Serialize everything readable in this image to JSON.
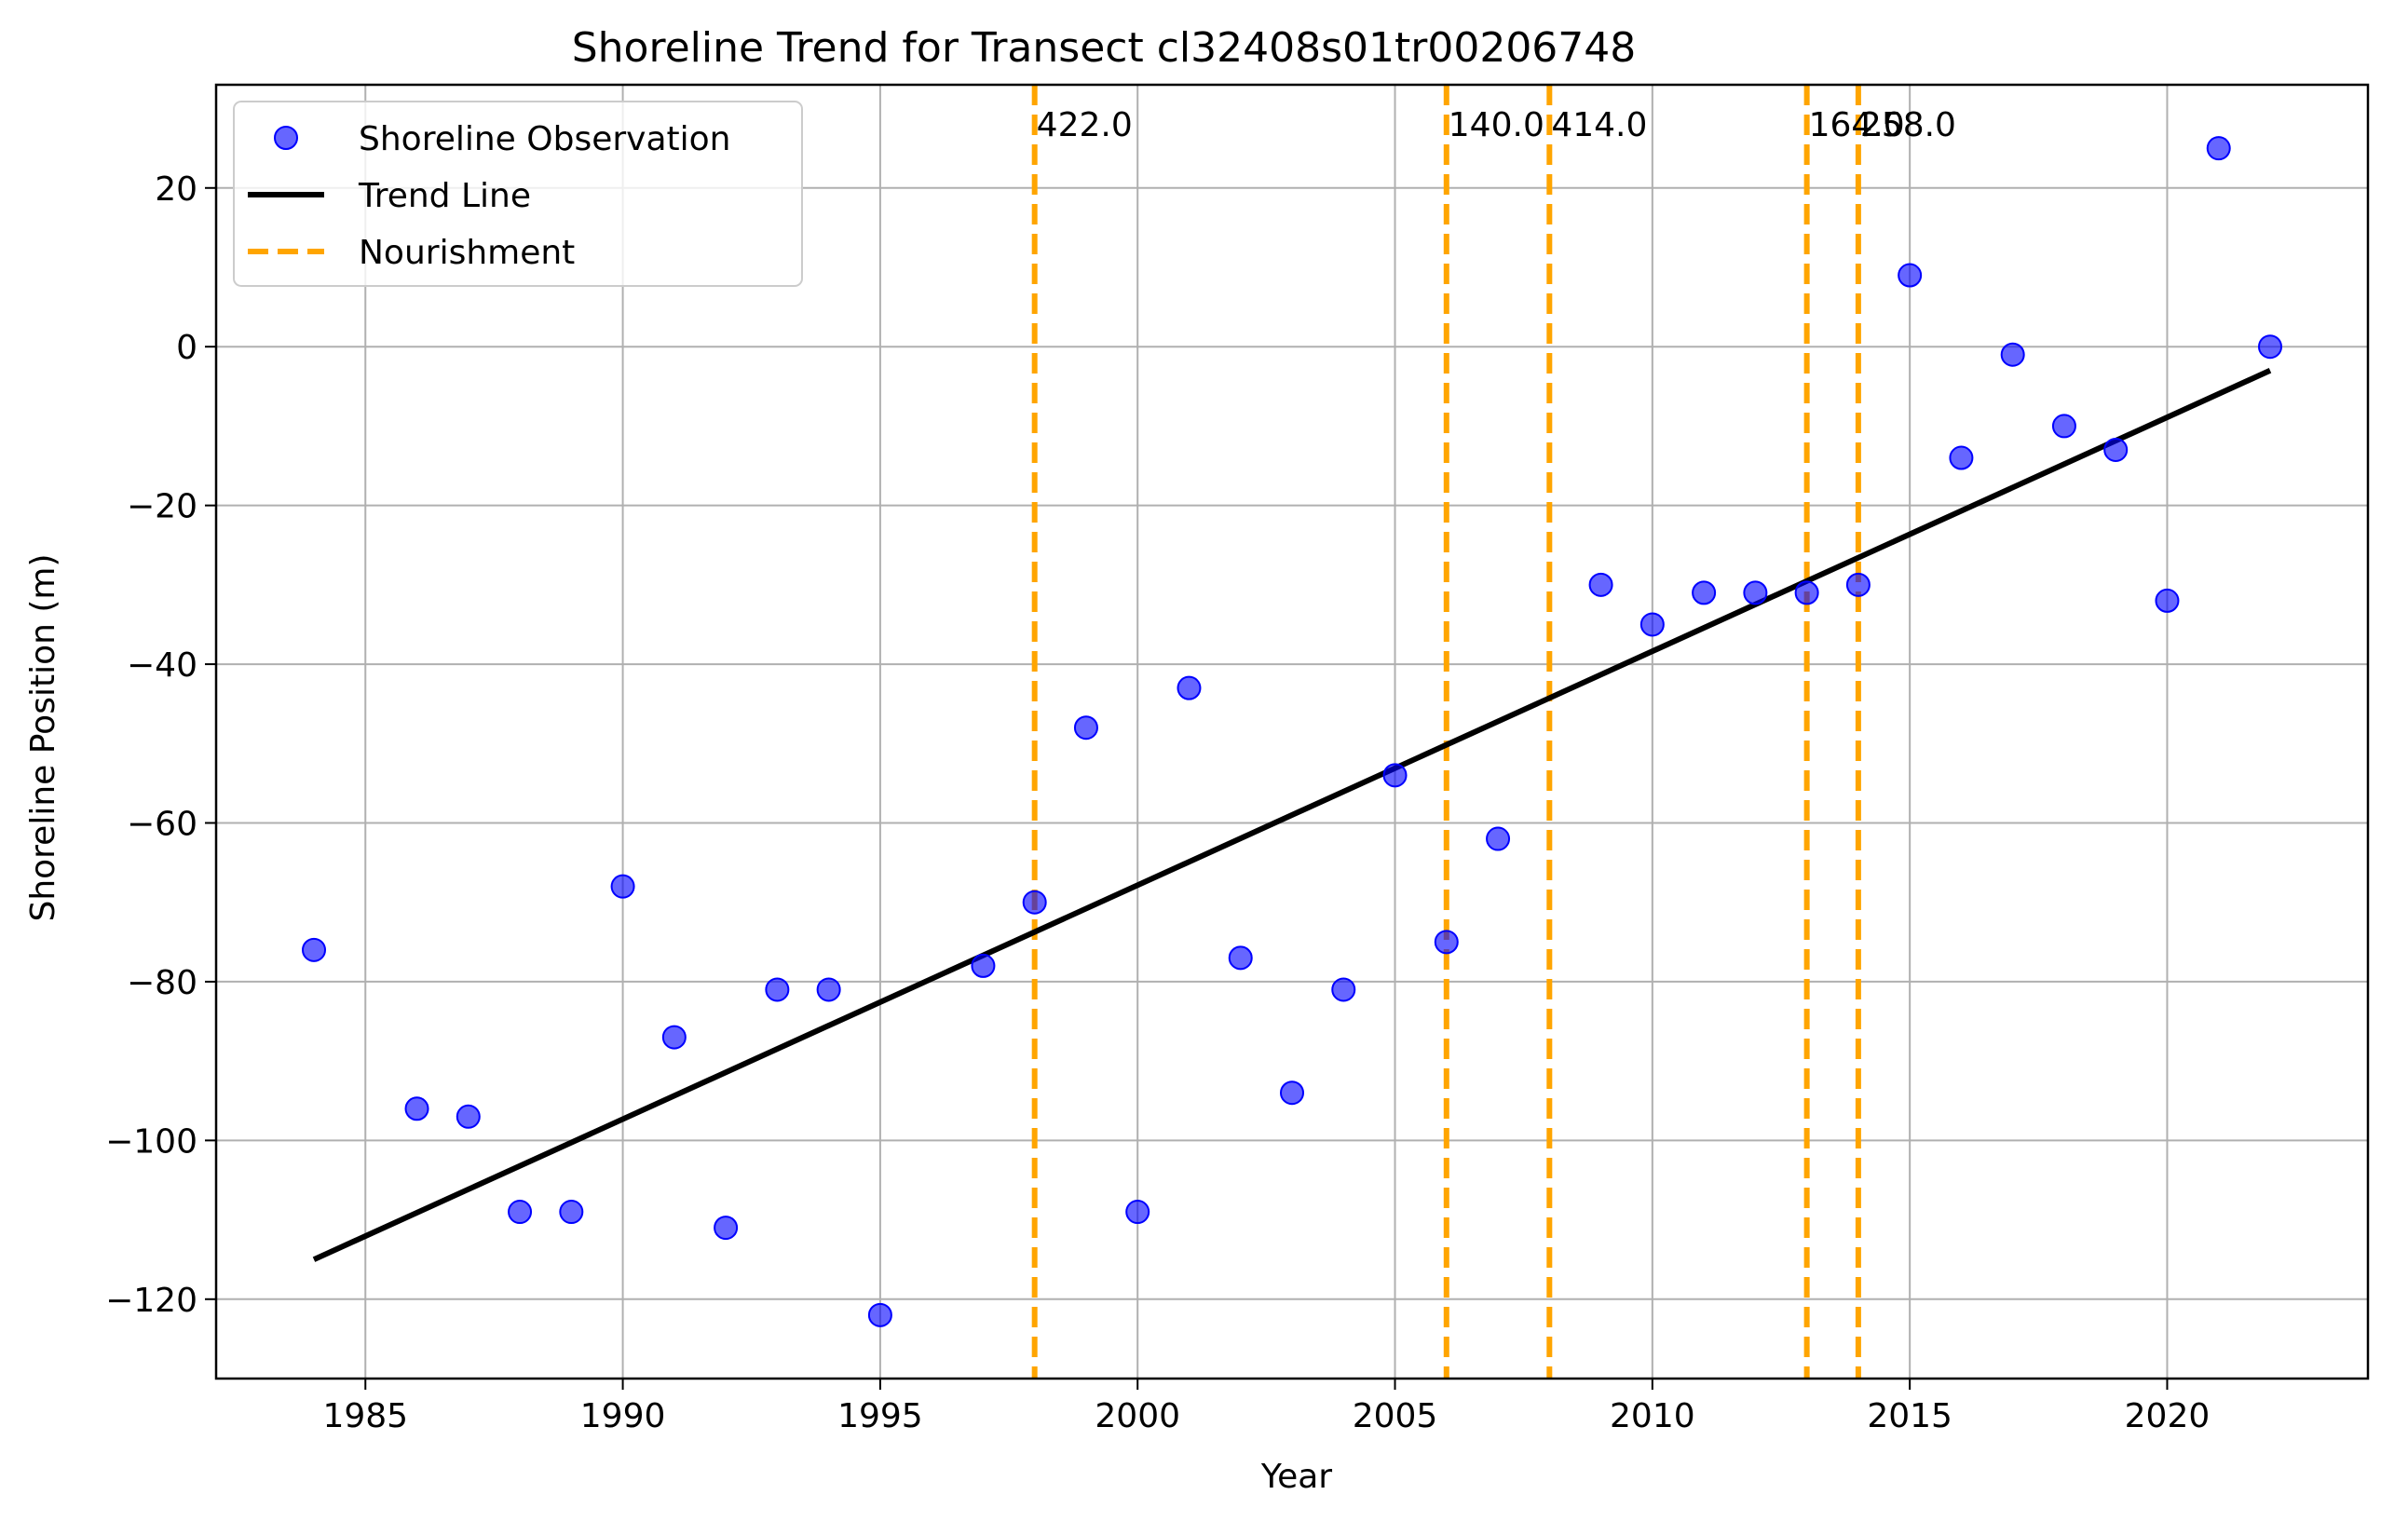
{
  "chart_data": {
    "type": "scatter",
    "title": "Shoreline Trend for Transect cl32408s01tr00206748",
    "xlabel": "Year",
    "ylabel": "Shoreline Position (m)",
    "xlim": [
      1982.1,
      2023.9
    ],
    "ylim": [
      -130,
      33
    ],
    "xticks": [
      1985,
      1990,
      1995,
      2000,
      2005,
      2010,
      2015,
      2020
    ],
    "yticks": [
      -120,
      -100,
      -80,
      -60,
      -40,
      -20,
      0,
      20
    ],
    "grid": true,
    "legend_position": "top-left",
    "series": [
      {
        "name": "Shoreline Observation",
        "type": "scatter",
        "color": "#0000ff",
        "points": [
          {
            "x": 1984,
            "y": -76
          },
          {
            "x": 1986,
            "y": -96
          },
          {
            "x": 1987,
            "y": -97
          },
          {
            "x": 1988,
            "y": -109
          },
          {
            "x": 1989,
            "y": -109
          },
          {
            "x": 1990,
            "y": -68
          },
          {
            "x": 1991,
            "y": -87
          },
          {
            "x": 1992,
            "y": -111
          },
          {
            "x": 1993,
            "y": -81
          },
          {
            "x": 1994,
            "y": -81
          },
          {
            "x": 1995,
            "y": -122
          },
          {
            "x": 1997,
            "y": -78
          },
          {
            "x": 1998,
            "y": -70
          },
          {
            "x": 1999,
            "y": -48
          },
          {
            "x": 2000,
            "y": -109
          },
          {
            "x": 2001,
            "y": -43
          },
          {
            "x": 2002,
            "y": -77
          },
          {
            "x": 2003,
            "y": -94
          },
          {
            "x": 2004,
            "y": -81
          },
          {
            "x": 2005,
            "y": -54
          },
          {
            "x": 2006,
            "y": -75
          },
          {
            "x": 2007,
            "y": -62
          },
          {
            "x": 2009,
            "y": -30
          },
          {
            "x": 2010,
            "y": -35
          },
          {
            "x": 2011,
            "y": -31
          },
          {
            "x": 2012,
            "y": -31
          },
          {
            "x": 2013,
            "y": -31
          },
          {
            "x": 2014,
            "y": -30
          },
          {
            "x": 2015,
            "y": 9
          },
          {
            "x": 2016,
            "y": -14
          },
          {
            "x": 2017,
            "y": -1
          },
          {
            "x": 2018,
            "y": -10
          },
          {
            "x": 2019,
            "y": -13
          },
          {
            "x": 2020,
            "y": -32
          },
          {
            "x": 2021,
            "y": 25
          },
          {
            "x": 2022,
            "y": 0
          }
        ]
      },
      {
        "name": "Trend Line",
        "type": "line",
        "color": "#000000",
        "points": [
          {
            "x": 1984,
            "y": -115
          },
          {
            "x": 2022,
            "y": -3
          }
        ]
      },
      {
        "name": "Nourishment",
        "type": "vline",
        "color": "#ffa500",
        "lines": [
          {
            "x": 1998,
            "label": "422.0"
          },
          {
            "x": 2006,
            "label": "140.0"
          },
          {
            "x": 2008,
            "label": "414.0"
          },
          {
            "x": 2013,
            "label": "164.0"
          },
          {
            "x": 2014,
            "label": "258.0"
          }
        ]
      }
    ]
  }
}
